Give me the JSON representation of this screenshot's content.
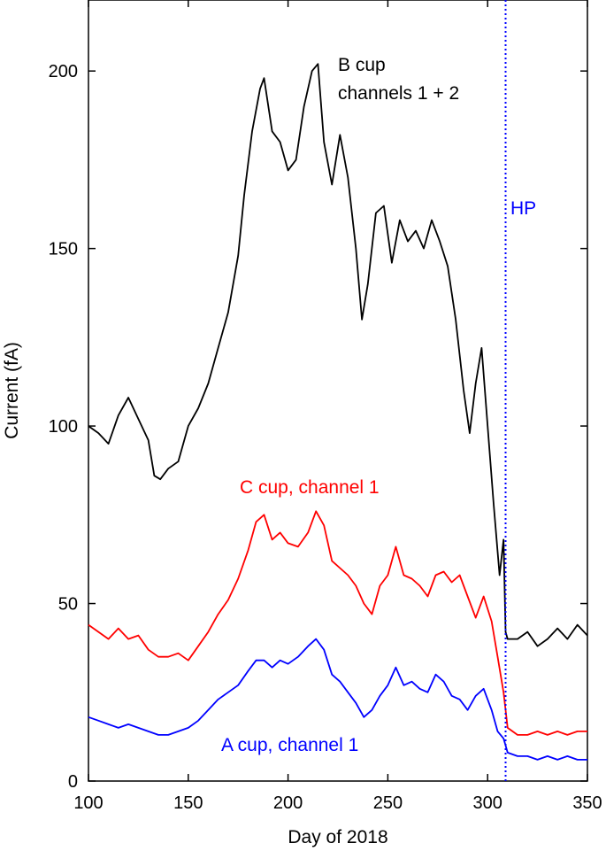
{
  "chart_data": {
    "type": "line",
    "title": "",
    "xlabel": "Day of 2018",
    "ylabel": "Current (fA)",
    "xlim": [
      100,
      350
    ],
    "ylim": [
      0,
      220
    ],
    "xticks": [
      100,
      150,
      200,
      250,
      300,
      350
    ],
    "yticks": [
      0,
      50,
      100,
      150,
      200
    ],
    "grid": false,
    "colors": {
      "b_cup": "#000000",
      "c_cup": "#ff0000",
      "a_cup": "#0000ff",
      "hp_line": "#0000ff"
    },
    "annotations": [
      {
        "text": "B cup",
        "color": "#000000"
      },
      {
        "text": "channels 1 + 2",
        "color": "#000000"
      },
      {
        "text": "C cup, channel 1",
        "color": "#ff0000"
      },
      {
        "text": "A cup, channel 1",
        "color": "#0000ff"
      },
      {
        "text": "HP",
        "color": "#0000ff"
      }
    ],
    "vline": {
      "x": 309,
      "label": "HP",
      "style": "dotted"
    },
    "series": [
      {
        "name": "B cup channels 1 + 2",
        "key": "b_cup",
        "x": [
          100,
          105,
          110,
          115,
          120,
          125,
          130,
          133,
          136,
          140,
          145,
          150,
          155,
          160,
          165,
          170,
          175,
          178,
          182,
          186,
          188,
          192,
          196,
          200,
          204,
          208,
          212,
          215,
          218,
          222,
          226,
          230,
          234,
          237,
          240,
          244,
          248,
          252,
          256,
          260,
          264,
          268,
          272,
          276,
          280,
          284,
          288,
          291,
          294,
          297,
          300,
          303,
          306,
          308,
          309,
          310,
          315,
          320,
          325,
          330,
          335,
          340,
          345,
          350
        ],
        "y": [
          100,
          98,
          95,
          103,
          108,
          102,
          96,
          86,
          85,
          88,
          90,
          100,
          105,
          112,
          122,
          132,
          148,
          165,
          183,
          195,
          198,
          183,
          180,
          172,
          175,
          190,
          200,
          202,
          180,
          168,
          182,
          170,
          150,
          130,
          140,
          160,
          162,
          146,
          158,
          152,
          155,
          150,
          158,
          152,
          145,
          130,
          110,
          98,
          112,
          122,
          100,
          78,
          58,
          68,
          42,
          40,
          40,
          42,
          38,
          40,
          43,
          40,
          44,
          41
        ]
      },
      {
        "name": "C cup, channel 1",
        "key": "c_cup",
        "x": [
          100,
          105,
          110,
          115,
          120,
          125,
          130,
          135,
          140,
          145,
          150,
          155,
          160,
          165,
          170,
          175,
          180,
          184,
          188,
          192,
          196,
          200,
          205,
          210,
          214,
          218,
          222,
          226,
          230,
          234,
          238,
          242,
          246,
          250,
          254,
          258,
          262,
          266,
          270,
          274,
          278,
          282,
          286,
          290,
          294,
          298,
          302,
          305,
          308,
          309,
          310,
          315,
          320,
          325,
          330,
          335,
          340,
          345,
          350
        ],
        "y": [
          44,
          42,
          40,
          43,
          40,
          41,
          37,
          35,
          35,
          36,
          34,
          38,
          42,
          47,
          51,
          57,
          65,
          73,
          75,
          68,
          70,
          67,
          66,
          70,
          76,
          72,
          62,
          60,
          58,
          55,
          50,
          47,
          55,
          58,
          66,
          58,
          57,
          55,
          52,
          58,
          59,
          56,
          58,
          52,
          46,
          52,
          45,
          35,
          25,
          20,
          15,
          13,
          13,
          14,
          13,
          14,
          13,
          14,
          14
        ]
      },
      {
        "name": "A cup, channel 1",
        "key": "a_cup",
        "x": [
          100,
          105,
          110,
          115,
          120,
          125,
          130,
          135,
          140,
          145,
          150,
          155,
          160,
          165,
          170,
          175,
          180,
          184,
          188,
          192,
          196,
          200,
          205,
          210,
          214,
          218,
          222,
          226,
          230,
          234,
          238,
          242,
          246,
          250,
          254,
          258,
          262,
          266,
          270,
          274,
          278,
          282,
          286,
          290,
          294,
          298,
          302,
          305,
          308,
          309,
          310,
          315,
          320,
          325,
          330,
          335,
          340,
          345,
          350
        ],
        "y": [
          18,
          17,
          16,
          15,
          16,
          15,
          14,
          13,
          13,
          14,
          15,
          17,
          20,
          23,
          25,
          27,
          31,
          34,
          34,
          32,
          34,
          33,
          35,
          38,
          40,
          37,
          30,
          28,
          25,
          22,
          18,
          20,
          24,
          27,
          32,
          27,
          28,
          26,
          25,
          30,
          28,
          24,
          23,
          20,
          24,
          26,
          20,
          14,
          12,
          10,
          8,
          7,
          7,
          6,
          7,
          6,
          7,
          6,
          6
        ]
      }
    ]
  }
}
